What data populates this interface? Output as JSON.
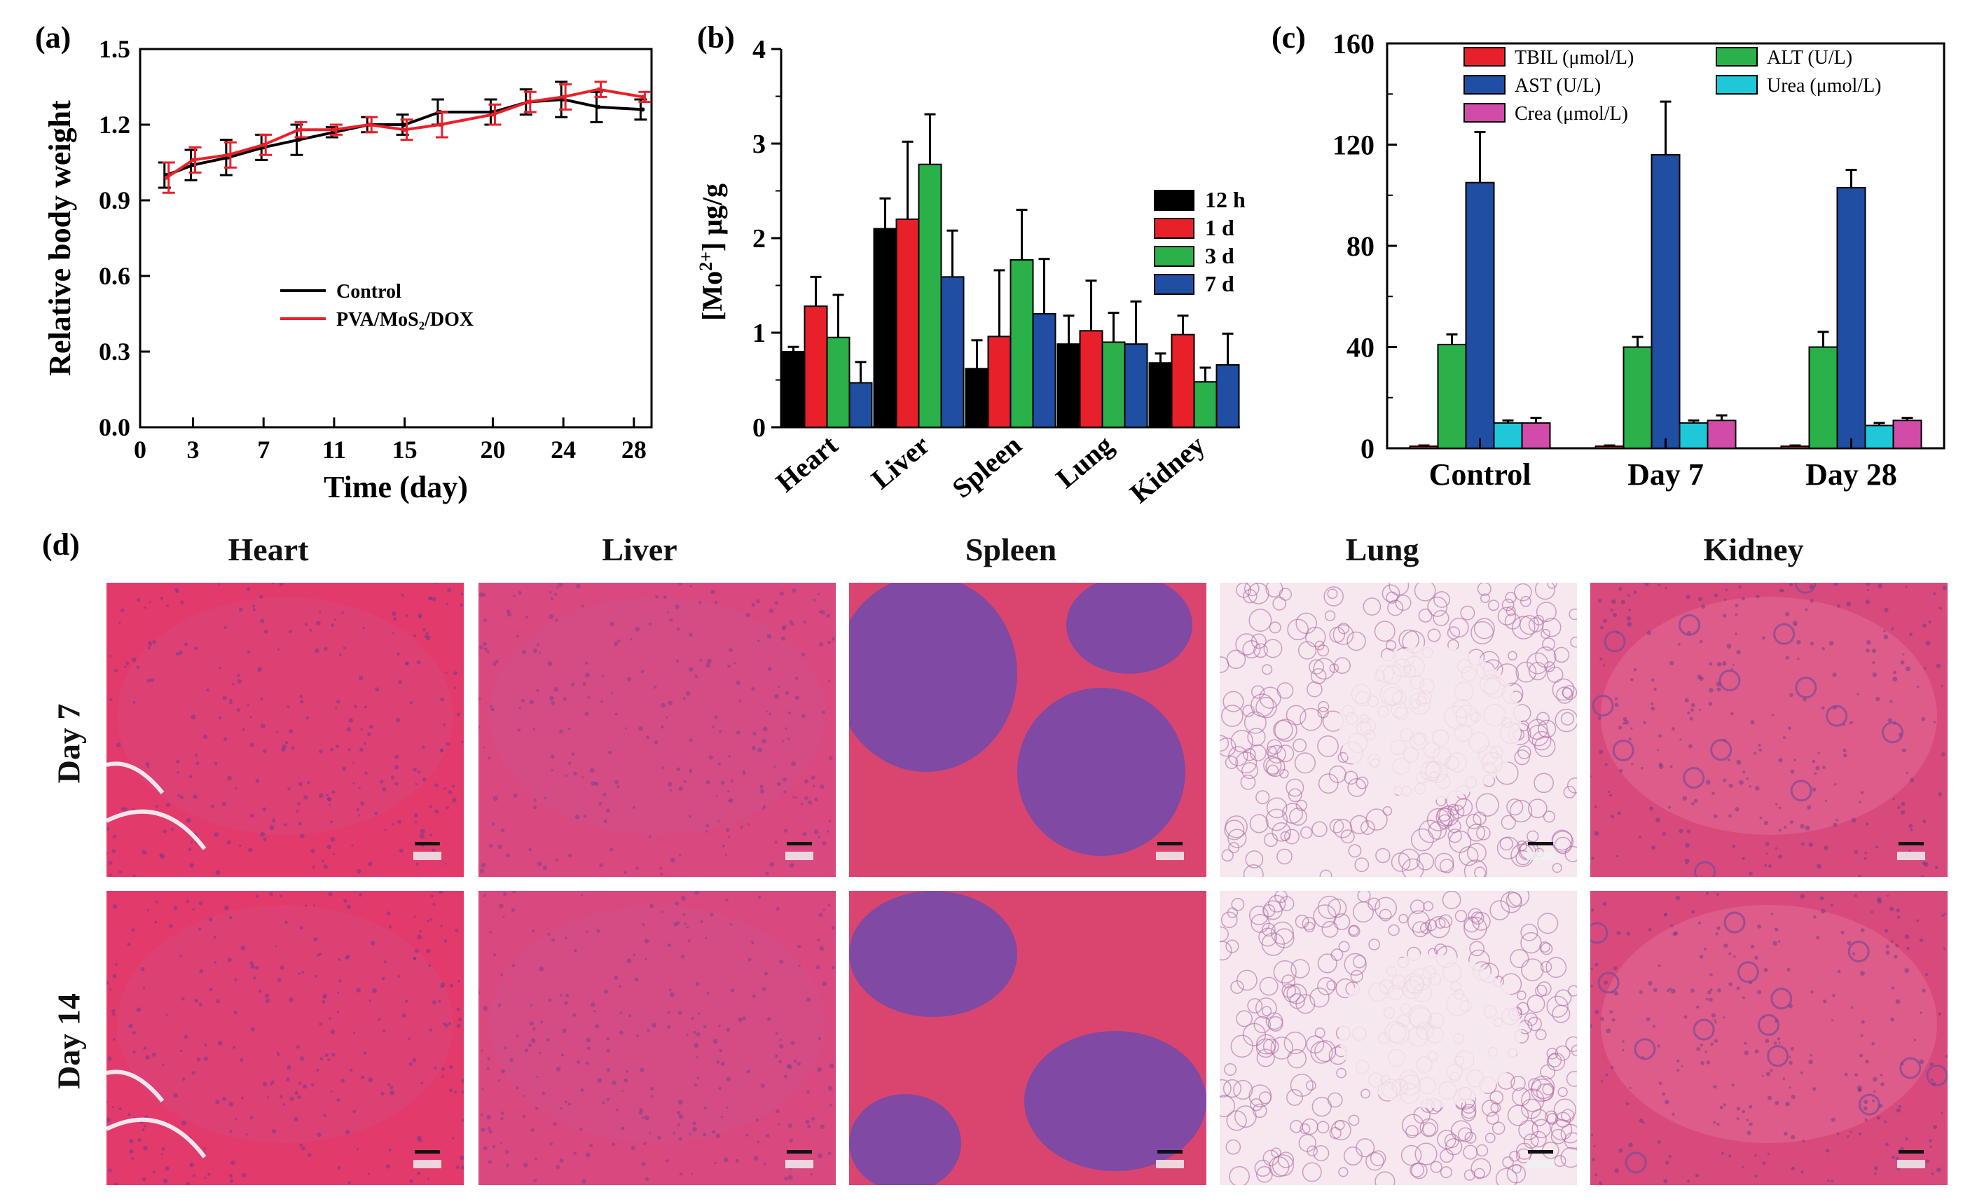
{
  "panels": {
    "a": "(a)",
    "b": "(b)",
    "c": "(c)",
    "d": "(d)"
  },
  "chart_data": [
    {
      "id": "a",
      "type": "line",
      "xlabel": "Time (day)",
      "ylabel": "Relative body weight",
      "xlim": [
        0,
        29
      ],
      "ylim": [
        0,
        1.5
      ],
      "xticks": [
        0,
        3,
        7,
        11,
        15,
        20,
        24,
        28
      ],
      "yticks": [
        "0.0",
        "0.3",
        "0.6",
        "0.9",
        "1.2",
        "1.5"
      ],
      "legend_position": "center",
      "series": [
        {
          "name": "Control",
          "color": "#000000",
          "x": [
            1.5,
            3,
            5,
            7,
            9,
            11,
            13,
            15,
            17,
            20,
            22,
            24,
            26,
            28.5
          ],
          "y": [
            1.0,
            1.04,
            1.07,
            1.11,
            1.14,
            1.17,
            1.2,
            1.2,
            1.25,
            1.25,
            1.29,
            1.3,
            1.27,
            1.26
          ],
          "err": [
            0.05,
            0.06,
            0.07,
            0.05,
            0.06,
            0.02,
            0.03,
            0.04,
            0.05,
            0.05,
            0.05,
            0.07,
            0.06,
            0.04
          ]
        },
        {
          "name": "PVA/MoS₂/DOX",
          "color": "#e8202a",
          "x": [
            1.5,
            3,
            5,
            7,
            9,
            11,
            13,
            15,
            17,
            20,
            22,
            24,
            26,
            28.5
          ],
          "y": [
            0.99,
            1.06,
            1.08,
            1.12,
            1.18,
            1.18,
            1.2,
            1.18,
            1.2,
            1.24,
            1.29,
            1.31,
            1.34,
            1.31
          ],
          "err": [
            0.06,
            0.05,
            0.05,
            0.04,
            0.03,
            0.02,
            0.03,
            0.04,
            0.05,
            0.04,
            0.04,
            0.05,
            0.03,
            0.02
          ]
        }
      ]
    },
    {
      "id": "b",
      "type": "bar",
      "ylabel_main": "[Mo",
      "ylabel_sup": "2+",
      "ylabel_tail": "] μg/g",
      "ylim": [
        0,
        4
      ],
      "yticks": [
        "0",
        "1",
        "2",
        "3",
        "4"
      ],
      "categories": [
        "Heart",
        "Liver",
        "Spleen",
        "Lung",
        "Kidney"
      ],
      "legend_position": "right",
      "series": [
        {
          "name": "12 h",
          "color": "#000000",
          "values": [
            0.8,
            2.1,
            0.62,
            0.88,
            0.68
          ],
          "err": [
            0.05,
            0.32,
            0.3,
            0.3,
            0.1
          ]
        },
        {
          "name": "1 d",
          "color": "#e8202a",
          "values": [
            1.28,
            2.2,
            0.96,
            1.02,
            0.98
          ],
          "err": [
            0.31,
            0.82,
            0.7,
            0.53,
            0.2
          ]
        },
        {
          "name": "3 d",
          "color": "#2bb14a",
          "values": [
            0.95,
            2.78,
            1.77,
            0.9,
            0.48
          ],
          "err": [
            0.45,
            0.53,
            0.53,
            0.31,
            0.15
          ]
        },
        {
          "name": "7 d",
          "color": "#1f4ea3",
          "values": [
            0.47,
            1.59,
            1.2,
            0.88,
            0.66
          ],
          "err": [
            0.22,
            0.49,
            0.58,
            0.45,
            0.33
          ]
        }
      ]
    },
    {
      "id": "c",
      "type": "bar",
      "ylim": [
        0,
        160
      ],
      "yticks": [
        "0",
        "40",
        "80",
        "120",
        "160"
      ],
      "categories": [
        "Control",
        "Day 7",
        "Day 28"
      ],
      "legend_position": "top",
      "series": [
        {
          "name": "TBIL (μmol/L)",
          "color": "#e8202a",
          "values": [
            0.8,
            0.8,
            0.8
          ],
          "err": [
            0.3,
            0.3,
            0.3
          ]
        },
        {
          "name": "ALT (U/L)",
          "color": "#2bb14a",
          "values": [
            41,
            40,
            40
          ],
          "err": [
            4,
            4,
            6
          ]
        },
        {
          "name": "AST (U/L)",
          "color": "#1f4ea3",
          "values": [
            105,
            116,
            103
          ],
          "err": [
            20,
            21,
            7
          ]
        },
        {
          "name": "Urea (μmol/L)",
          "color": "#1fc8d8",
          "values": [
            10,
            10,
            9
          ],
          "err": [
            1,
            1,
            1
          ]
        },
        {
          "name": "Crea (μmol/L)",
          "color": "#d04ca8",
          "values": [
            10,
            11,
            11
          ],
          "err": [
            2,
            2,
            1
          ]
        }
      ]
    }
  ],
  "histology": {
    "columns": [
      "Heart",
      "Liver",
      "Spleen",
      "Lung",
      "Kidney"
    ],
    "rows": [
      "Day 7",
      "Day 14"
    ]
  }
}
